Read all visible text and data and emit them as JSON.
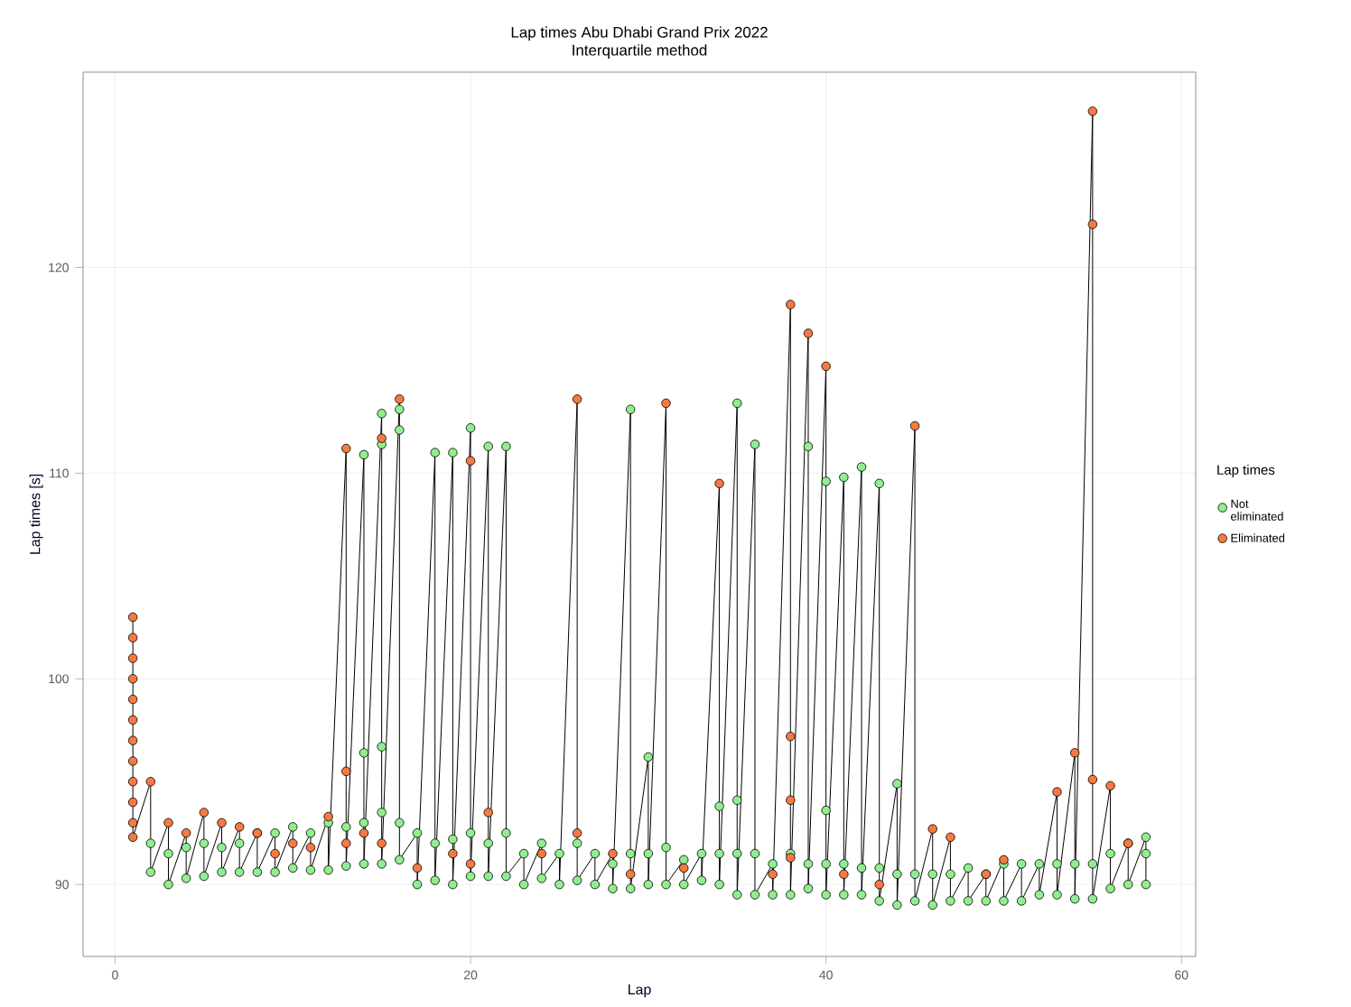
{
  "chart_data": {
    "type": "scatter",
    "title": "Lap times Abu Dhabi Grand Prix 2022",
    "subtitle": "Interquartile method",
    "xlabel": "Lap",
    "ylabel": "Lap times [s]",
    "legend_title": "Lap times",
    "xlim": [
      -1.8,
      60.8
    ],
    "ylim": [
      86.5,
      129.5
    ],
    "xticks": [
      0,
      20,
      40,
      60
    ],
    "yticks": [
      90,
      100,
      110,
      120
    ],
    "grid": true,
    "legend": "right",
    "series": [
      {
        "type": "line",
        "color": "#000000",
        "line_style": "solid",
        "marker": "none",
        "x": [
          1,
          1,
          2,
          2,
          3,
          3,
          4,
          4,
          5,
          5,
          6,
          6,
          7,
          7,
          8,
          8,
          9,
          9,
          10,
          10,
          11,
          11,
          12,
          12,
          13,
          13,
          14,
          14,
          15,
          15,
          16,
          16,
          17,
          17,
          18,
          18,
          19,
          19,
          20,
          20,
          21,
          21,
          22,
          22,
          23,
          23,
          24,
          24,
          25,
          25,
          26,
          26,
          27,
          27,
          28,
          28,
          29,
          29,
          30,
          30,
          31,
          31,
          32,
          32,
          33,
          33,
          34,
          34,
          35,
          35,
          36,
          36,
          37,
          37,
          38,
          38,
          39,
          39,
          40,
          40,
          41,
          41,
          42,
          42,
          43,
          43,
          44,
          44,
          45,
          45,
          46,
          46,
          47,
          47,
          48,
          48,
          49,
          49,
          50,
          50,
          51,
          51,
          52,
          52,
          53,
          53,
          54,
          54,
          55,
          55,
          56,
          56,
          57,
          57,
          58,
          58
        ],
        "values": [
          103.0,
          92.3,
          95.0,
          90.6,
          93.0,
          90.0,
          92.5,
          90.3,
          93.5,
          90.4,
          93.0,
          90.6,
          92.8,
          90.6,
          92.5,
          90.6,
          92.5,
          90.6,
          92.8,
          90.8,
          92.5,
          90.7,
          93.3,
          90.7,
          111.2,
          90.9,
          110.9,
          91.0,
          112.9,
          91.0,
          113.6,
          91.2,
          92.5,
          90.0,
          111.0,
          90.2,
          111.0,
          90.0,
          112.2,
          90.4,
          111.3,
          90.4,
          111.3,
          90.4,
          91.5,
          90.0,
          92.0,
          90.3,
          91.5,
          90.0,
          113.6,
          90.2,
          91.5,
          90.0,
          91.5,
          89.8,
          113.1,
          89.8,
          96.2,
          90.0,
          113.4,
          90.0,
          91.2,
          90.0,
          91.5,
          90.2,
          109.5,
          90.0,
          113.4,
          89.5,
          111.4,
          89.5,
          91.0,
          89.5,
          118.2,
          89.5,
          116.8,
          89.8,
          115.2,
          89.5,
          109.8,
          89.5,
          110.3,
          89.5,
          109.5,
          89.2,
          94.9,
          89.0,
          112.3,
          89.2,
          92.7,
          89.0,
          92.3,
          89.2,
          90.8,
          89.2,
          90.5,
          89.2,
          91.2,
          89.2,
          91.0,
          89.2,
          91.0,
          89.5,
          94.5,
          89.5,
          96.4,
          89.3,
          127.6,
          89.3,
          94.8,
          89.8,
          92.0,
          90.0,
          92.3,
          90.0
        ]
      },
      {
        "name": "Not eliminated",
        "color": "#90ee90",
        "marker": "circle",
        "x": [
          2,
          2,
          3,
          3,
          4,
          4,
          5,
          5,
          6,
          6,
          7,
          7,
          8,
          8,
          9,
          9,
          10,
          10,
          11,
          11,
          12,
          12,
          13,
          13,
          14,
          14,
          15,
          15,
          16,
          16,
          17,
          17,
          18,
          18,
          19,
          19,
          20,
          20,
          21,
          21,
          22,
          22,
          23,
          23,
          24,
          24,
          25,
          25,
          26,
          26,
          27,
          27,
          28,
          28,
          29,
          29,
          30,
          30,
          31,
          31,
          32,
          32,
          33,
          33,
          34,
          34,
          35,
          35,
          36,
          36,
          37,
          37,
          38,
          38,
          39,
          39,
          40,
          40,
          41,
          41,
          42,
          42,
          43,
          43,
          44,
          44,
          45,
          45,
          46,
          46,
          47,
          47,
          48,
          48,
          49,
          49,
          50,
          50,
          51,
          51,
          52,
          52,
          53,
          53,
          54,
          54,
          55,
          55,
          56,
          56,
          57,
          57,
          58,
          58,
          14,
          14,
          15,
          15,
          15,
          16,
          16,
          18,
          19,
          20,
          21,
          22,
          29,
          30,
          34,
          35,
          35,
          36,
          39,
          40,
          40,
          41,
          42,
          43,
          44,
          58
        ],
        "values": [
          90.6,
          92.0,
          90.0,
          91.5,
          90.3,
          91.8,
          90.4,
          92.0,
          90.6,
          91.8,
          90.6,
          92.0,
          90.6,
          92.5,
          90.6,
          92.5,
          90.8,
          92.8,
          90.7,
          92.5,
          90.7,
          93.0,
          90.9,
          92.8,
          91.0,
          93.0,
          91.0,
          93.5,
          91.2,
          93.0,
          90.0,
          92.5,
          90.2,
          92.0,
          90.0,
          92.2,
          90.4,
          92.5,
          90.4,
          92.0,
          90.4,
          92.5,
          90.0,
          91.5,
          90.3,
          92.0,
          90.0,
          91.5,
          90.2,
          92.0,
          90.0,
          91.5,
          89.8,
          91.0,
          89.8,
          91.5,
          90.0,
          91.5,
          90.0,
          91.8,
          90.0,
          91.2,
          90.2,
          91.5,
          90.0,
          91.5,
          89.5,
          91.5,
          89.5,
          91.5,
          89.5,
          91.0,
          89.5,
          91.5,
          89.8,
          91.0,
          89.5,
          91.0,
          89.5,
          91.0,
          89.5,
          90.8,
          89.2,
          90.8,
          89.0,
          90.5,
          89.2,
          90.5,
          89.0,
          90.5,
          89.2,
          90.5,
          89.2,
          90.8,
          89.2,
          90.5,
          89.2,
          91.0,
          89.2,
          91.0,
          89.5,
          91.0,
          89.5,
          91.0,
          89.3,
          91.0,
          89.3,
          91.0,
          89.8,
          91.5,
          90.0,
          92.0,
          90.0,
          91.5,
          110.9,
          96.4,
          112.9,
          111.4,
          96.7,
          113.1,
          112.1,
          111.0,
          111.0,
          112.2,
          111.3,
          111.3,
          113.1,
          96.2,
          93.8,
          113.4,
          94.1,
          111.4,
          111.3,
          109.6,
          93.6,
          109.8,
          110.3,
          109.5,
          94.9,
          92.3
        ]
      },
      {
        "name": "Eliminated",
        "color": "#f47a42",
        "marker": "circle",
        "x": [
          1,
          1,
          1,
          1,
          1,
          1,
          1,
          1,
          1,
          1,
          1,
          1,
          2,
          13,
          13,
          15,
          16,
          20,
          26,
          31,
          34,
          38,
          38,
          38,
          39,
          40,
          45,
          53,
          54,
          55,
          55,
          55,
          56,
          3,
          4,
          5,
          6,
          7,
          8,
          9,
          10,
          11,
          12,
          13,
          14,
          15,
          17,
          19,
          20,
          21,
          24,
          26,
          28,
          29,
          32,
          37,
          38,
          41,
          43,
          46,
          47,
          49,
          50,
          57
        ],
        "values": [
          103.0,
          102.0,
          101.0,
          100.0,
          99.0,
          98.0,
          97.0,
          96.0,
          95.0,
          94.0,
          93.0,
          92.3,
          95.0,
          111.2,
          95.5,
          111.7,
          113.6,
          110.6,
          113.6,
          113.4,
          109.5,
          118.2,
          97.2,
          94.1,
          116.8,
          115.2,
          112.3,
          94.5,
          96.4,
          127.6,
          122.1,
          95.1,
          94.8,
          93.0,
          92.5,
          93.5,
          93.0,
          92.8,
          92.5,
          91.5,
          92.0,
          91.8,
          93.3,
          92.0,
          92.5,
          92.0,
          90.8,
          91.5,
          91.0,
          93.5,
          91.5,
          92.5,
          91.5,
          90.5,
          90.8,
          90.5,
          91.3,
          90.5,
          90.0,
          92.7,
          92.3,
          90.5,
          91.2,
          92.0
        ]
      }
    ]
  }
}
